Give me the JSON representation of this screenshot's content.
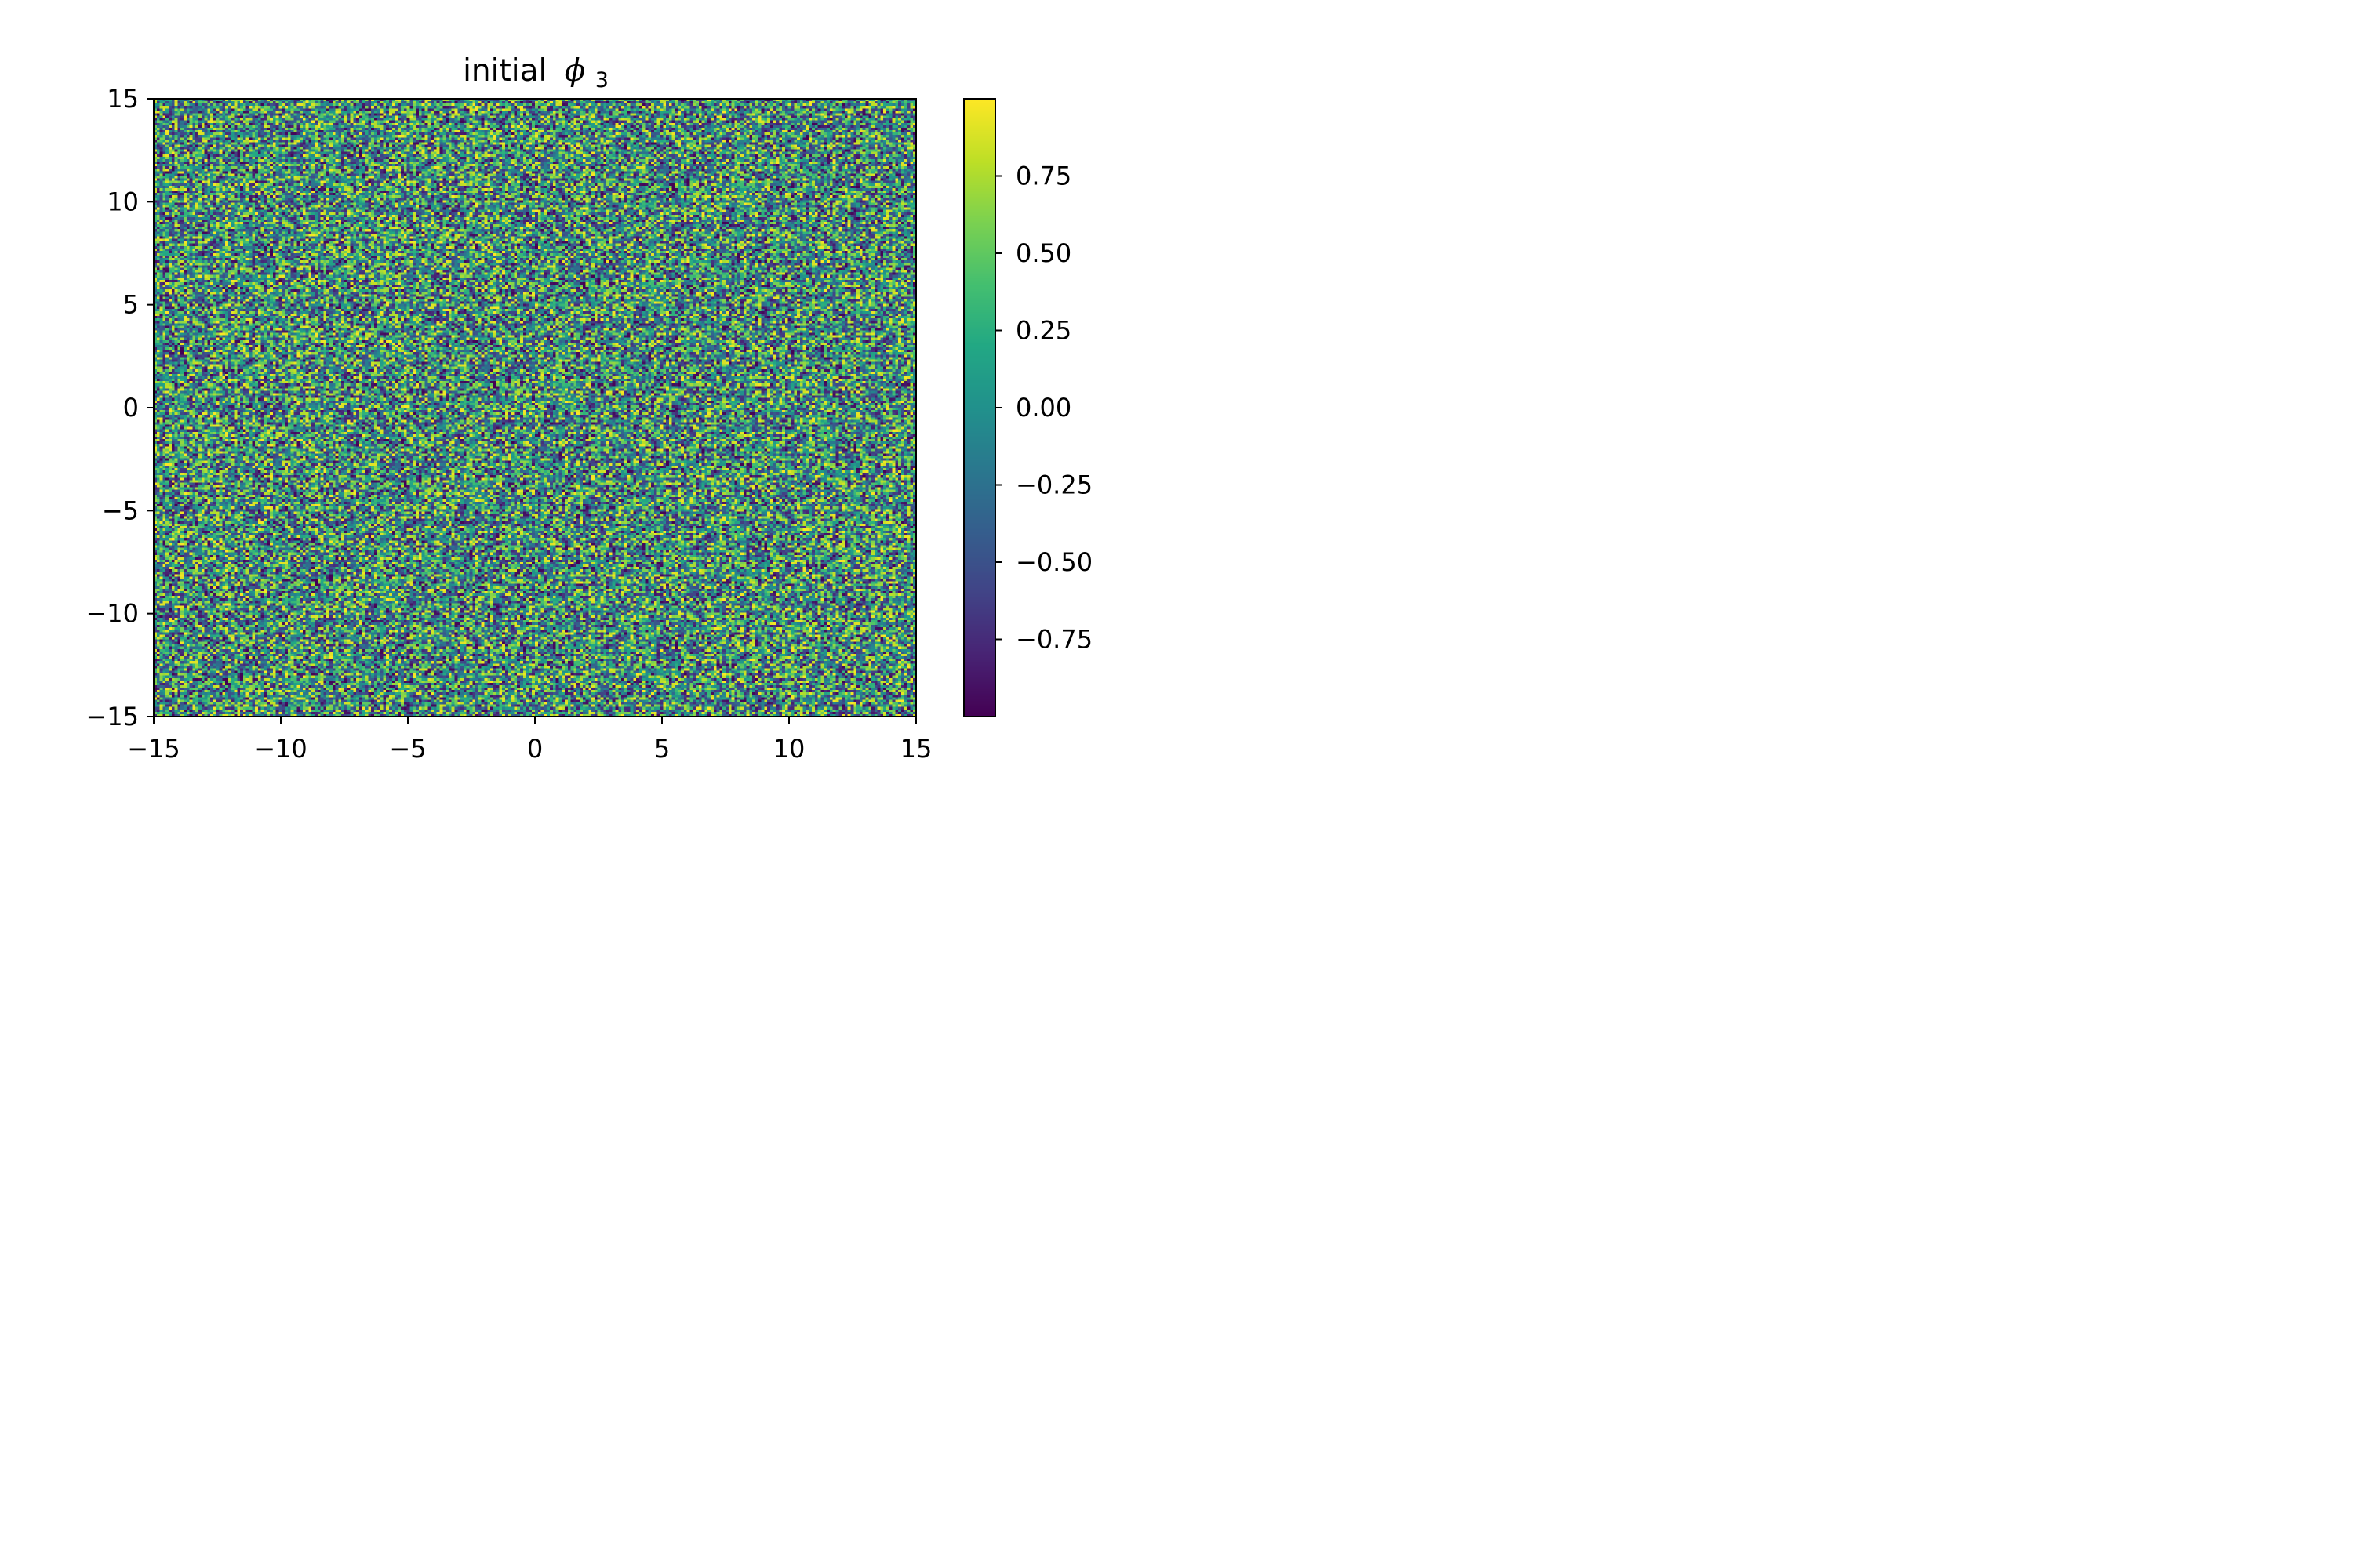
{
  "chart_data": {
    "type": "heatmap",
    "title": "initial",
    "title_symbol": "ϕ",
    "title_subscript": "3",
    "xlabel": "",
    "ylabel": "",
    "xlim": [
      -15,
      15
    ],
    "ylim": [
      -15,
      15
    ],
    "x_ticks": [
      -15,
      -10,
      -5,
      0,
      5,
      10,
      15
    ],
    "x_tick_labels": [
      "−15",
      "−10",
      "−5",
      "0",
      "5",
      "10",
      "15"
    ],
    "y_ticks": [
      -15,
      -10,
      -5,
      0,
      5,
      10,
      15
    ],
    "y_tick_labels": [
      "−15",
      "−10",
      "−5",
      "0",
      "5",
      "10",
      "15"
    ],
    "grid": false,
    "colormap": "viridis",
    "colorbar": {
      "vmin": -1.0,
      "vmax": 1.0,
      "ticks": [
        0.75,
        0.5,
        0.25,
        0.0,
        -0.25,
        -0.5,
        -0.75
      ],
      "tick_labels": [
        "0.75",
        "0.50",
        "0.25",
        "0.00",
        "−0.25",
        "−0.50",
        "−0.75"
      ]
    },
    "field": {
      "description": "uniform random noise in [-1, 1] on a regular grid",
      "grid_size": [
        256,
        256
      ],
      "distribution": "uniform",
      "range": [
        -1.0,
        1.0
      ]
    }
  }
}
